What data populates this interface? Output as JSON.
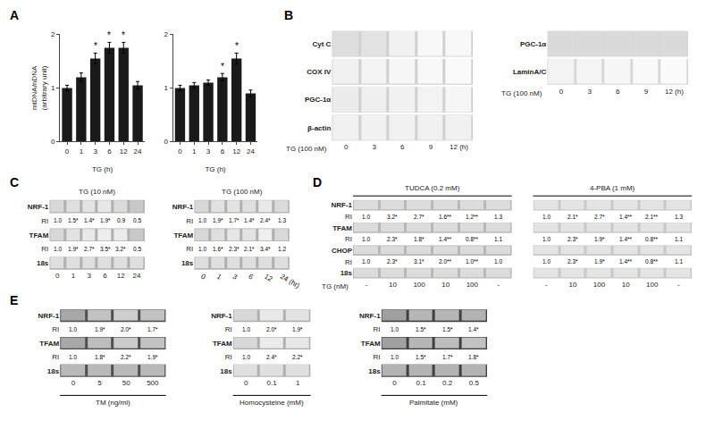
{
  "chart_data": [
    {
      "type": "bar",
      "annotations": [
        {
          "text": "A"
        },
        {
          "category": "3",
          "text": "*"
        },
        {
          "category": "6",
          "text": "*"
        },
        {
          "category": "12",
          "text": "*"
        }
      ],
      "categories": [
        "0",
        "1",
        "3",
        "6",
        "12",
        "24"
      ],
      "values": [
        1.0,
        1.2,
        1.55,
        1.75,
        1.75,
        1.05
      ],
      "errors": [
        0.05,
        0.08,
        0.1,
        0.1,
        0.1,
        0.07
      ],
      "color": "#1a1a1a",
      "xlabel": "TG (h)",
      "ylabel": "mtDNA/nDNA\n(arbitrary unit)",
      "ylim": [
        0,
        2
      ],
      "yticks": [
        0,
        1,
        2
      ],
      "grid": false
    },
    {
      "type": "bar",
      "annotations": [
        {
          "category": "6",
          "text": "*"
        },
        {
          "category": "12",
          "text": "*"
        }
      ],
      "categories": [
        "0",
        "1",
        "3",
        "6",
        "12",
        "24"
      ],
      "values": [
        1.0,
        1.05,
        1.1,
        1.2,
        1.55,
        0.9
      ],
      "errors": [
        0.05,
        0.05,
        0.05,
        0.07,
        0.1,
        0.06
      ],
      "color": "#1a1a1a",
      "xlabel": "TG (h)",
      "ylim": [
        0,
        2
      ],
      "yticks": [
        0,
        1,
        2
      ],
      "grid": false
    },
    {
      "type": "gel",
      "annotations": [
        {
          "text": "B"
        }
      ],
      "categories": [
        "0",
        "3",
        "6",
        "9",
        "12 (h)"
      ],
      "xlabel": "TG (100 nM)",
      "color": "#d0d0d0",
      "zlim": [
        0,
        1
      ],
      "rows": [
        {
          "label": "Cyt C",
          "cells": [
            0.3,
            0.4,
            0.7,
            0.85,
            0.85
          ]
        },
        {
          "label": "COX IV",
          "cells": [
            0.7,
            0.75,
            0.8,
            0.85,
            0.9
          ]
        },
        {
          "label": "PGC-1α",
          "cells": [
            0.6,
            0.65,
            0.7,
            0.75,
            0.8
          ]
        },
        {
          "label": "β-actin",
          "cells": [
            0.7,
            0.7,
            0.7,
            0.7,
            0.7
          ]
        }
      ]
    },
    {
      "type": "gel",
      "categories": [
        "0",
        "3",
        "6",
        "9",
        "12 (h)"
      ],
      "xlabel": "TG (100 nM)",
      "color": "#d8d8d8",
      "zlim": [
        0,
        1
      ],
      "rows": [
        {
          "label": "PGC-1α",
          "cells": [
            0.05,
            0.05,
            0.05,
            0.05,
            0.05
          ]
        },
        {
          "label": "LaminA/C",
          "cells": [
            0.7,
            0.75,
            0.8,
            0.85,
            0.9
          ]
        }
      ]
    },
    {
      "type": "gel",
      "annotations": [
        {
          "text": "C"
        }
      ],
      "title": "TG (10 nM)",
      "categories": [
        "0",
        "1",
        "3",
        "6",
        "12",
        "24"
      ],
      "color": "#b0b0b0",
      "zlim": [
        0,
        1
      ],
      "rows": [
        {
          "label": "NRF-1",
          "cells": [
            0.5,
            0.6,
            0.65,
            0.7,
            0.55,
            0.3
          ]
        },
        {
          "label": "RI",
          "texts": [
            "1.0",
            "1.5*",
            "1.4*",
            "1.9*",
            "0.9",
            "0.5"
          ]
        },
        {
          "label": "TFAM",
          "cells": [
            0.5,
            0.65,
            0.72,
            0.78,
            0.75,
            0.3
          ]
        },
        {
          "label": "RI",
          "texts": [
            "1.0",
            "1.9*",
            "2.7*",
            "3.5*",
            "3.2*",
            "0.5"
          ]
        },
        {
          "label": "18s",
          "cells": [
            0.6,
            0.6,
            0.6,
            0.6,
            0.6,
            0.6
          ]
        }
      ]
    },
    {
      "type": "gel",
      "title": "TG (100 nM)",
      "categories": [
        "0",
        "1",
        "3",
        "6",
        "12",
        "24 (hr)"
      ],
      "color": "#b0b0b0",
      "zlim": [
        0,
        1
      ],
      "rows": [
        {
          "label": "NRF-1",
          "cells": [
            0.5,
            0.62,
            0.65,
            0.6,
            0.72,
            0.55
          ]
        },
        {
          "label": "RI",
          "texts": [
            "1.0",
            "1.9*",
            "1.7*",
            "1.4*",
            "2.4*",
            "1.3"
          ]
        },
        {
          "label": "TFAM",
          "cells": [
            0.5,
            0.6,
            0.68,
            0.65,
            0.8,
            0.52
          ]
        },
        {
          "label": "RI",
          "texts": [
            "1.0",
            "1.6*",
            "2.3*",
            "2.1*",
            "3.4*",
            "1.2"
          ]
        },
        {
          "label": "18s",
          "cells": [
            0.6,
            0.6,
            0.6,
            0.6,
            0.6,
            0.6
          ]
        }
      ]
    },
    {
      "type": "gel",
      "annotations": [
        {
          "text": "D"
        }
      ],
      "title": "TUDCA (0.2 mM)",
      "categories": [
        "-",
        "10",
        "100",
        "10",
        "100",
        "-"
      ],
      "xlabel": "TG (nM)",
      "color": "#b8b8b8",
      "zlim": [
        0,
        1
      ],
      "rows": [
        {
          "label": "NRF-1",
          "cells": [
            0.5,
            0.5,
            0.5,
            0.5,
            0.5,
            0.5
          ]
        },
        {
          "label": "RI",
          "texts": [
            "1.0",
            "3.2*",
            "2.7*",
            "1.6**",
            "1.2**",
            "1.3"
          ]
        },
        {
          "label": "TFAM",
          "cells": [
            0.5,
            0.5,
            0.5,
            0.5,
            0.5,
            0.5
          ]
        },
        {
          "label": "RI",
          "texts": [
            "1.0",
            "2.3*",
            "1.8*",
            "1.4**",
            "0.8**",
            "1.1"
          ]
        },
        {
          "label": "CHOP",
          "cells": [
            0.5,
            0.5,
            0.5,
            0.5,
            0.5,
            0.5
          ]
        },
        {
          "label": "RI",
          "texts": [
            "1.0",
            "2.3*",
            "3.1*",
            "2.0**",
            "1.0**",
            "1.0"
          ]
        },
        {
          "label": "18s",
          "cells": [
            0.5,
            0.5,
            0.5,
            0.5,
            0.5,
            0.5
          ]
        }
      ]
    },
    {
      "type": "gel",
      "title": "4-PBA (1 mM)",
      "categories": [
        "-",
        "10",
        "100",
        "10",
        "100",
        "-"
      ],
      "color": "#c8c8c8",
      "zlim": [
        0,
        1
      ],
      "rows": [
        {
          "cells": [
            0.5,
            0.5,
            0.5,
            0.5,
            0.5,
            0.5
          ]
        },
        {
          "texts": [
            "1.0",
            "2.1*",
            "2.7*",
            "1.4**",
            "2.1**",
            "1.3"
          ]
        },
        {
          "cells": [
            0.5,
            0.5,
            0.5,
            0.5,
            0.5,
            0.5
          ]
        },
        {
          "texts": [
            "1.0",
            "2.3*",
            "1.9*",
            "1.4**",
            "0.8**",
            "1.1"
          ]
        },
        {
          "cells": [
            0.5,
            0.5,
            0.5,
            0.5,
            0.5,
            0.5
          ]
        },
        {
          "texts": [
            "1.0",
            "2.3*",
            "1.9*",
            "1.4**",
            "0.8**",
            "1.1"
          ]
        },
        {
          "cells": [
            0.5,
            0.5,
            0.5,
            0.5,
            0.5,
            0.5
          ]
        }
      ]
    },
    {
      "type": "gel",
      "annotations": [
        {
          "text": "E"
        }
      ],
      "title": "TM (ng/ml)",
      "categories": [
        "0",
        "5",
        "50",
        "500"
      ],
      "color": "#505050",
      "zlim": [
        0,
        1
      ],
      "rows": [
        {
          "label": "NRF-1",
          "cells": [
            0.5,
            0.65,
            0.72,
            0.65
          ]
        },
        {
          "label": "RI",
          "texts": [
            "1.0",
            "1.9*",
            "2.0*",
            "1.7*"
          ]
        },
        {
          "label": "TFAM",
          "cells": [
            0.5,
            0.62,
            0.7,
            0.65
          ]
        },
        {
          "label": "RI",
          "texts": [
            "1.0",
            "1.8*",
            "2.2*",
            "1.9*"
          ]
        },
        {
          "label": "18s",
          "cells": [
            0.6,
            0.6,
            0.6,
            0.6
          ]
        }
      ]
    },
    {
      "type": "gel",
      "title": "Homocysteine (mM)",
      "categories": [
        "0",
        "0.1",
        "1"
      ],
      "color": "#b0b0b0",
      "zlim": [
        0,
        1
      ],
      "rows": [
        {
          "label": "NRF-1",
          "cells": [
            0.5,
            0.72,
            0.65
          ]
        },
        {
          "label": "RI",
          "texts": [
            "1.0",
            "2.0*",
            "1.9*"
          ]
        },
        {
          "label": "TFAM",
          "cells": [
            0.5,
            0.75,
            0.7
          ]
        },
        {
          "label": "RI",
          "texts": [
            "1.0",
            "2.4*",
            "2.2*"
          ]
        },
        {
          "label": "18s",
          "cells": [
            0.6,
            0.6,
            0.6
          ]
        }
      ]
    },
    {
      "type": "gel",
      "title": "Palmitate (mM)",
      "categories": [
        "0",
        "0.1",
        "0.2",
        "0.5"
      ],
      "color": "#404040",
      "zlim": [
        0,
        1
      ],
      "rows": [
        {
          "label": "NRF-1",
          "cells": [
            0.5,
            0.62,
            0.62,
            0.6
          ]
        },
        {
          "label": "RI",
          "texts": [
            "1.0",
            "1.5*",
            "1.5*",
            "1.4*"
          ]
        },
        {
          "label": "TFAM",
          "cells": [
            0.5,
            0.62,
            0.65,
            0.68
          ]
        },
        {
          "label": "RI",
          "texts": [
            "1.0",
            "1.5*",
            "1.7*",
            "1.8*"
          ]
        },
        {
          "label": "18s",
          "cells": [
            0.6,
            0.6,
            0.6,
            0.6
          ]
        }
      ]
    }
  ]
}
